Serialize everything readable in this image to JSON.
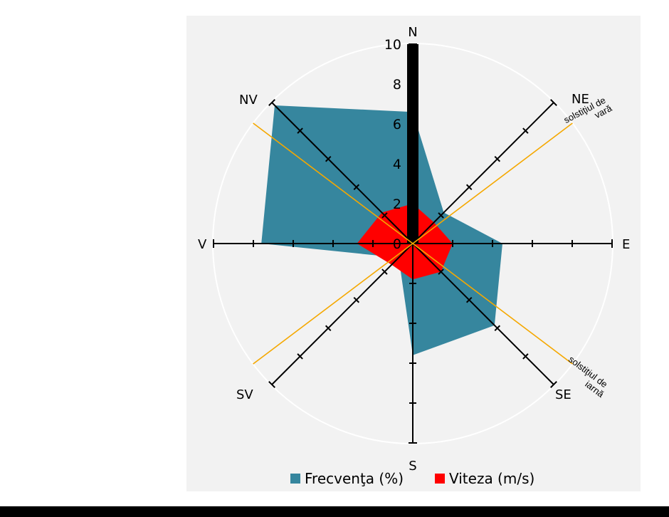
{
  "chart_data": {
    "type": "radar",
    "title": "",
    "directions": [
      "N",
      "NE",
      "E",
      "SE",
      "S",
      "SV",
      "V",
      "NV"
    ],
    "radial_ticks": [
      "0",
      "2",
      "4",
      "6",
      "8",
      "10"
    ],
    "rmax": 10,
    "series": [
      {
        "name": "Frecvenţa (%)",
        "color": "#36869e",
        "values": [
          6.6,
          2.2,
          4.5,
          5.8,
          5.6,
          1.0,
          7.6,
          9.8
        ]
      },
      {
        "name": "Viteza (m/s)",
        "color": "#ff0000",
        "values": [
          2.0,
          1.5,
          2.0,
          2.0,
          1.8,
          1.5,
          2.8,
          2.2
        ]
      }
    ],
    "north_bar": {
      "value": 10,
      "color": "#000000"
    },
    "solstice_lines": [
      {
        "label_lines": [
          "solstiţiul de",
          "vară"
        ],
        "bearing_deg": 53,
        "color": "#f5a800"
      },
      {
        "label_lines": [
          "solstiţiul de",
          "iarnă"
        ],
        "bearing_deg": 127,
        "color": "#f5a800"
      }
    ],
    "grid": true,
    "legend_position": "bottom"
  }
}
